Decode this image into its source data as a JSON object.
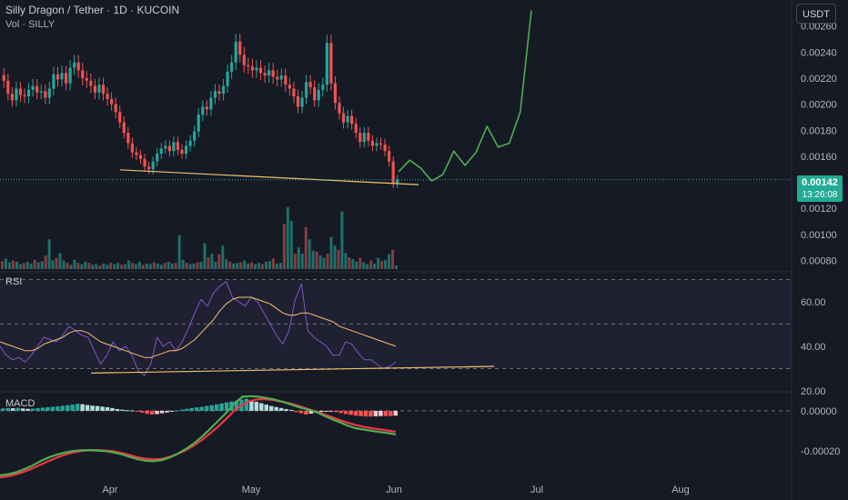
{
  "header": {
    "title": "Silly Dragon / Tether · 1D · KUCOIN",
    "volume_label": "Vol · SILLY"
  },
  "currency_button": "USDT",
  "price_tag": {
    "price": "0.00142",
    "countdown": "13:26:08"
  },
  "panes": {
    "rsi_label": "RSI",
    "macd_label": "MACD"
  },
  "colors": {
    "background": "#161a25",
    "up": "#26a69a",
    "down": "#ef5350",
    "rsi_line": "#7e57c2",
    "rsi_ma": "#f0c36b",
    "macd_line": "#4caf50",
    "signal_line": "#f23645",
    "projection": "#4caf50",
    "trendline": "#f0c36b"
  },
  "chart_data": [
    {
      "type": "candlestick",
      "pane": "price",
      "y_axis_ticks": [
        "0.00260",
        "0.00240",
        "0.00220",
        "0.00200",
        "0.00180",
        "0.00160",
        "0.00120",
        "0.00100",
        "0.00080"
      ],
      "x_axis_ticks": [
        "Apr",
        "May",
        "Jun",
        "Jul",
        "Aug"
      ],
      "ylim": [
        0.00072,
        0.0028
      ],
      "last_price": 0.00142,
      "candles_close": [
        0.00218,
        0.00208,
        0.00203,
        0.00212,
        0.00207,
        0.00206,
        0.00211,
        0.00214,
        0.00209,
        0.0021,
        0.00205,
        0.00212,
        0.00223,
        0.00219,
        0.00224,
        0.00216,
        0.00228,
        0.00232,
        0.00226,
        0.0022,
        0.00218,
        0.00214,
        0.00209,
        0.00215,
        0.00208,
        0.00204,
        0.002,
        0.00194,
        0.00186,
        0.00178,
        0.0017,
        0.00163,
        0.00161,
        0.00158,
        0.00152,
        0.0015,
        0.00156,
        0.00162,
        0.00166,
        0.00168,
        0.00164,
        0.00171,
        0.00165,
        0.00162,
        0.00168,
        0.00172,
        0.00179,
        0.00192,
        0.00198,
        0.00196,
        0.00205,
        0.0021,
        0.00208,
        0.00214,
        0.00225,
        0.00232,
        0.00248,
        0.00238,
        0.0023,
        0.00229,
        0.00226,
        0.00228,
        0.00224,
        0.00222,
        0.00226,
        0.00221,
        0.00219,
        0.00222,
        0.00215,
        0.00212,
        0.00206,
        0.00198,
        0.00205,
        0.00217,
        0.00213,
        0.00203,
        0.00211,
        0.00215,
        0.00247,
        0.00216,
        0.00201,
        0.00193,
        0.00186,
        0.00191,
        0.00185,
        0.00178,
        0.00171,
        0.00178,
        0.00172,
        0.00168,
        0.0017,
        0.00169,
        0.00164,
        0.00156,
        0.00139,
        0.00142
      ],
      "projection_path_prices": [
        0.00148,
        0.00157,
        0.00151,
        0.00141,
        0.00146,
        0.00164,
        0.00153,
        0.00163,
        0.00183,
        0.00167,
        0.0017,
        0.00194,
        0.00272
      ],
      "support_trendline": [
        [
          0,
          0.00151
        ],
        [
          1,
          0.00141
        ]
      ],
      "volume_bars_relative": [
        0.13,
        0.17,
        0.11,
        0.14,
        0.12,
        0.08,
        0.1,
        0.12,
        0.09,
        0.15,
        0.11,
        0.13,
        0.22,
        0.48,
        0.14,
        0.18,
        0.26,
        0.14,
        0.1,
        0.07,
        0.15,
        0.1,
        0.08,
        0.12,
        0.1,
        0.07,
        0.08,
        0.06,
        0.09,
        0.07,
        0.1,
        0.08,
        0.1,
        0.07,
        0.08,
        0.14,
        0.1,
        0.08,
        0.12,
        0.07,
        0.09,
        0.08,
        0.11,
        0.09,
        0.07,
        0.1,
        0.12,
        0.09,
        0.1,
        0.55,
        0.15,
        0.1,
        0.08,
        0.09,
        0.11,
        0.12,
        0.42,
        0.19,
        0.25,
        0.12,
        0.24,
        0.38,
        0.16,
        0.12,
        0.09,
        0.1,
        0.11,
        0.14,
        0.09,
        0.11,
        0.08,
        0.1,
        0.08,
        0.12,
        0.13,
        0.17,
        0.09,
        0.1,
        0.73,
        1.0,
        0.78,
        0.25,
        0.35,
        0.25,
        0.68,
        0.48,
        0.3,
        0.28,
        0.22,
        0.18,
        0.25,
        0.52,
        0.38,
        0.31,
        0.93,
        0.26,
        0.19,
        0.16,
        0.12,
        0.18,
        0.11,
        0.08,
        0.14,
        0.09,
        0.18,
        0.13,
        0.15,
        0.24,
        0.31,
        0.06
      ]
    },
    {
      "type": "line",
      "pane": "RSI",
      "y_axis_ticks": [
        "60.00",
        "40.00",
        "20.00"
      ],
      "ylim": [
        20,
        73
      ],
      "bands": [
        30,
        50,
        70
      ],
      "rsi": [
        40,
        36,
        34,
        35,
        33,
        36,
        40,
        44,
        43,
        42,
        45,
        49,
        47,
        45,
        44,
        38,
        32,
        36,
        42,
        38,
        40,
        36,
        29,
        27,
        32,
        44,
        40,
        42,
        38,
        42,
        48,
        55,
        61,
        58,
        64,
        67,
        69,
        62,
        60,
        58,
        62,
        60,
        55,
        50,
        45,
        41,
        47,
        61,
        68,
        47,
        44,
        42,
        40,
        36,
        36,
        42,
        41,
        37,
        34,
        34,
        32,
        30,
        31,
        33
      ],
      "rsi_ma": [
        42,
        41,
        40,
        39,
        38,
        38,
        39,
        41,
        42,
        43,
        44,
        46,
        47,
        47,
        46,
        44,
        42,
        41,
        40,
        39,
        38,
        37,
        36,
        35,
        35,
        36,
        37,
        38,
        38,
        39,
        41,
        43,
        46,
        49,
        52,
        56,
        59,
        61,
        62,
        62,
        62,
        61,
        60,
        59,
        57,
        55,
        54,
        54,
        55,
        55,
        54,
        53,
        52,
        51,
        49,
        48,
        47,
        46,
        45,
        44,
        43,
        42,
        41,
        40
      ],
      "trendline": [
        [
          0,
          28
        ],
        [
          1,
          31
        ]
      ]
    },
    {
      "type": "bar",
      "pane": "MACD",
      "y_axis_ticks": [
        "0.00000",
        "-0.00020"
      ],
      "ylim": [
        -0.00033,
        9e-05
      ],
      "x_axis_ticks": [
        "Apr",
        "May",
        "Jun",
        "Jul",
        "Aug"
      ],
      "histogram": [
        1.2e-05,
        1.4e-05,
        1.3e-05,
        1.5e-05,
        1.2e-05,
        1e-05,
        1.1e-05,
        1.3e-05,
        1.6e-05,
        1.8e-05,
        2e-05,
        2.2e-05,
        2.5e-05,
        2.8e-05,
        3.1e-05,
        3.5e-05,
        3.3e-05,
        2.9e-05,
        2.6e-05,
        2.4e-05,
        2.1e-05,
        1.8e-05,
        1.4e-05,
        9e-06,
        6e-06,
        3e-06,
        2e-06,
        -2e-06,
        -9e-06,
        -1.5e-05,
        -1.8e-05,
        -1.6e-05,
        -1.2e-05,
        -8e-06,
        -4e-06,
        2e-06,
        6e-06,
        1e-05,
        1.4e-05,
        1.7e-05,
        2e-05,
        2.4e-05,
        2.8e-05,
        3.2e-05,
        3.7e-05,
        4.2e-05,
        4.6e-05,
        5e-05,
        5.6e-05,
        6e-05,
        5.2e-05,
        4.5e-05,
        3.8e-05,
        3.1e-05,
        2.4e-05,
        1.9e-05,
        1.4e-05,
        9e-06,
        5e-06,
        -6e-06,
        -1.2e-05,
        -1.8e-05,
        -1.4e-05,
        -1e-05,
        -6e-06,
        -4e-06,
        -2e-06,
        -6e-06,
        -1.1e-05,
        -1.6e-05,
        -2e-05,
        -2.4e-05,
        -2.6e-05,
        -2.8e-05,
        -2.8e-05,
        -2.7e-05,
        -2.6e-05,
        -2.6e-05,
        -2.6e-05,
        -2.4e-05
      ],
      "macd": [
        -0.00032,
        -0.000315,
        -0.000305,
        -0.00029,
        -0.000272,
        -0.00025,
        -0.000232,
        -0.000218,
        -0.000207,
        -0.0002,
        -0.000196,
        -0.000195,
        -0.000197,
        -0.0002,
        -0.000206,
        -0.000215,
        -0.000228,
        -0.00024,
        -0.000248,
        -0.00025,
        -0.000245,
        -0.000232,
        -0.000213,
        -0.00019,
        -0.000162,
        -0.000128,
        -9e-05,
        -5e-05,
        -1e-05,
        3.5e-05,
        7e-05,
        7.3e-05,
        7e-05,
        6.4e-05,
        5.6e-05,
        4.5e-05,
        3.2e-05,
        1.8e-05,
        8e-06,
        -3e-06,
        -2.2e-05,
        -4e-05,
        -5.6e-05,
        -7.3e-05,
        -8.6e-05,
        -9.3e-05,
        -9.9e-05,
        -0.000105,
        -0.00011,
        -0.000118
      ],
      "signal": [
        -0.00033,
        -0.000325,
        -0.000315,
        -0.000302,
        -0.000286,
        -0.000268,
        -0.00025,
        -0.000233,
        -0.000218,
        -0.000207,
        -0.0002,
        -0.000196,
        -0.000195,
        -0.000197,
        -0.000201,
        -0.000209,
        -0.000219,
        -0.00023,
        -0.000238,
        -0.000241,
        -0.000239,
        -0.000229,
        -0.000214,
        -0.000195,
        -0.000172,
        -0.000145,
        -0.000113,
        -7.8e-05,
        -4e-05,
        0.0,
        3e-05,
        5e-05,
        5.8e-05,
        5.8e-05,
        5.3e-05,
        4.5e-05,
        3.6e-05,
        2.4e-05,
        1.1e-05,
        -2e-06,
        -1.6e-05,
        -3e-05,
        -4.5e-05,
        -5.8e-05,
        -7e-05,
        -7.9e-05,
        -8.6e-05,
        -9.2e-05,
        -9.8e-05,
        -0.000104
      ]
    }
  ]
}
